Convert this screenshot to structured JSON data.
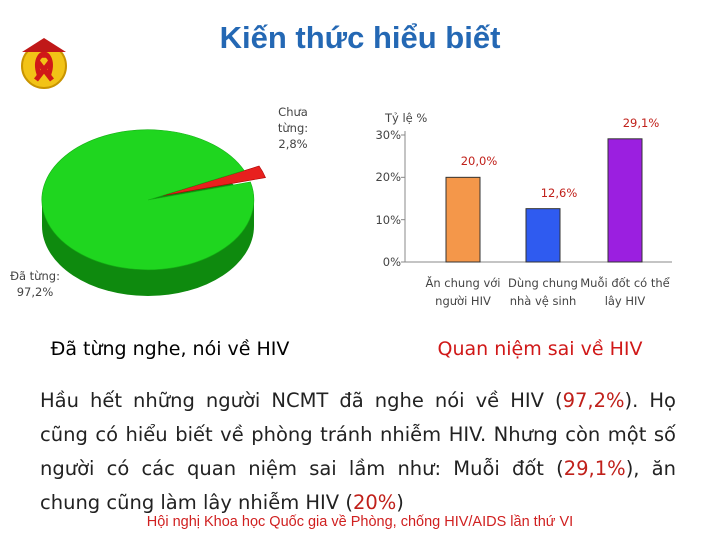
{
  "slide": {
    "title": "Kiến thức hiểu biết",
    "paragraph": {
      "segments": [
        "Hầu hết những người NCMT đã nghe nói về HIV (",
        "97,2%",
        "). Họ cũng có hiểu biết về phòng tránh nhiễm HIV. Nhưng còn một số người có các quan niệm sai lầm như: Muỗi đốt (",
        "29,1%",
        "), ăn chung cũng làm lây nhiễm HIV (",
        "20%",
        ")"
      ],
      "highlight_color": "#c0201a"
    },
    "footer": "Hội nghị Khoa học Quốc gia về Phòng, chống HIV/AIDS lần thứ VI"
  },
  "chart_data": [
    {
      "type": "pie",
      "caption": "Đã từng nghe, nói về HIV",
      "categories": [
        "Chưa từng:",
        "Đã từng:"
      ],
      "values": [
        2.8,
        97.2
      ],
      "value_labels": [
        "2,8%",
        "97,2%"
      ],
      "colors": [
        "#e8201e",
        "#1fd61f"
      ]
    },
    {
      "type": "bar",
      "caption": "Quan niệm sai về HIV",
      "ylabel": "Tỷ lệ %",
      "categories": [
        "Ăn chung với người HIV",
        "Dùng chung nhà vệ sinh",
        "Muỗi đốt có thể lây HIV"
      ],
      "values": [
        20.0,
        12.6,
        29.1
      ],
      "value_labels": [
        "20,0%",
        "12,6%",
        "29,1%"
      ],
      "colors": [
        "#f4974a",
        "#2f5bf0",
        "#9b1fe0"
      ],
      "value_label_color": "#c0201a",
      "ylim": [
        0,
        30
      ],
      "yticks": [
        {
          "value": 0,
          "label": "0%"
        },
        {
          "value": 10,
          "label": "10%"
        },
        {
          "value": 20,
          "label": "20%"
        },
        {
          "value": 30,
          "label": "30%"
        }
      ]
    }
  ]
}
